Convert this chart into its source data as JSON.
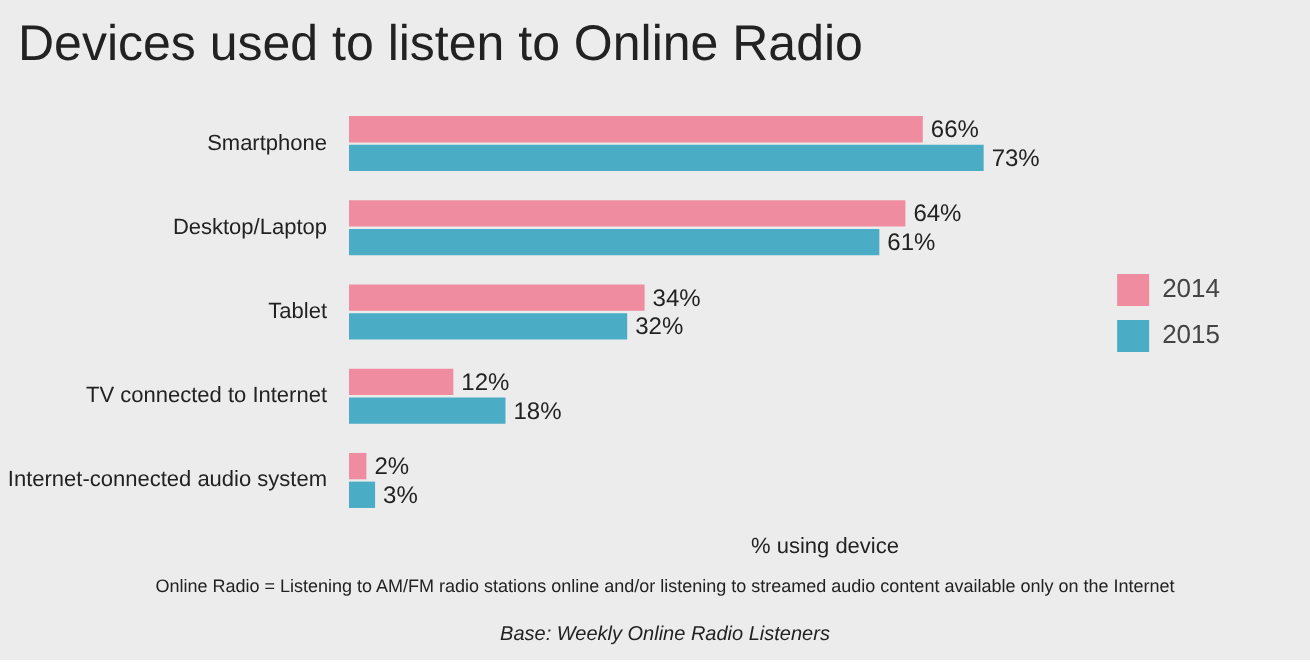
{
  "chart_data": {
    "type": "bar",
    "orientation": "horizontal",
    "title": "Devices used to listen to Online Radio",
    "xlabel": "% using device",
    "categories": [
      "Smartphone",
      "Desktop/Laptop",
      "Tablet",
      "TV connected to Internet",
      "Internet-connected audio system"
    ],
    "series": [
      {
        "name": "2014",
        "color": "#f08ca0",
        "values": [
          66,
          64,
          34,
          12,
          2
        ],
        "value_labels": [
          "66%",
          "64%",
          "34%",
          "12%",
          "2%"
        ]
      },
      {
        "name": "2015",
        "color": "#4bacc6",
        "values": [
          73,
          61,
          32,
          18,
          3
        ],
        "value_labels": [
          "73%",
          "61%",
          "32%",
          "18%",
          "3%"
        ]
      }
    ],
    "legend": "right",
    "tick_labels": "y",
    "annotations": [
      "Online Radio = Listening to AM/FM radio stations online and/or listening to streamed audio content available only on the Internet",
      "Base: Weekly Online Radio Listeners"
    ]
  }
}
